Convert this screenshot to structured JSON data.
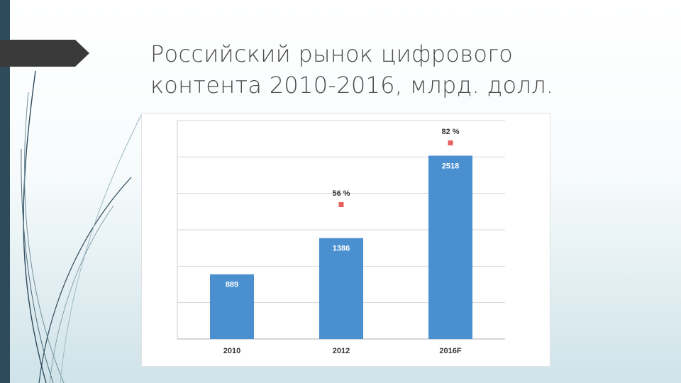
{
  "slide": {
    "title_line1": "Российский рынок цифрового",
    "title_line2": "контента 2010-2016, млрд. долл.",
    "accent_color": "#2e4b5c",
    "arrow_color": "#3a3a3a"
  },
  "chart_data": {
    "type": "bar",
    "categories": [
      "2010",
      "2012",
      "2016F"
    ],
    "values": [
      889,
      1386,
      2518
    ],
    "value_labels": [
      "889",
      "1386",
      "2518"
    ],
    "growth_labels": [
      "",
      "56 %",
      "82 %"
    ],
    "growth_values": [
      null,
      56,
      82
    ],
    "bar_color": "#4a90d0",
    "marker_color": "#e86060",
    "grid": true,
    "ylim": [
      0,
      3000
    ],
    "legend": "none"
  }
}
